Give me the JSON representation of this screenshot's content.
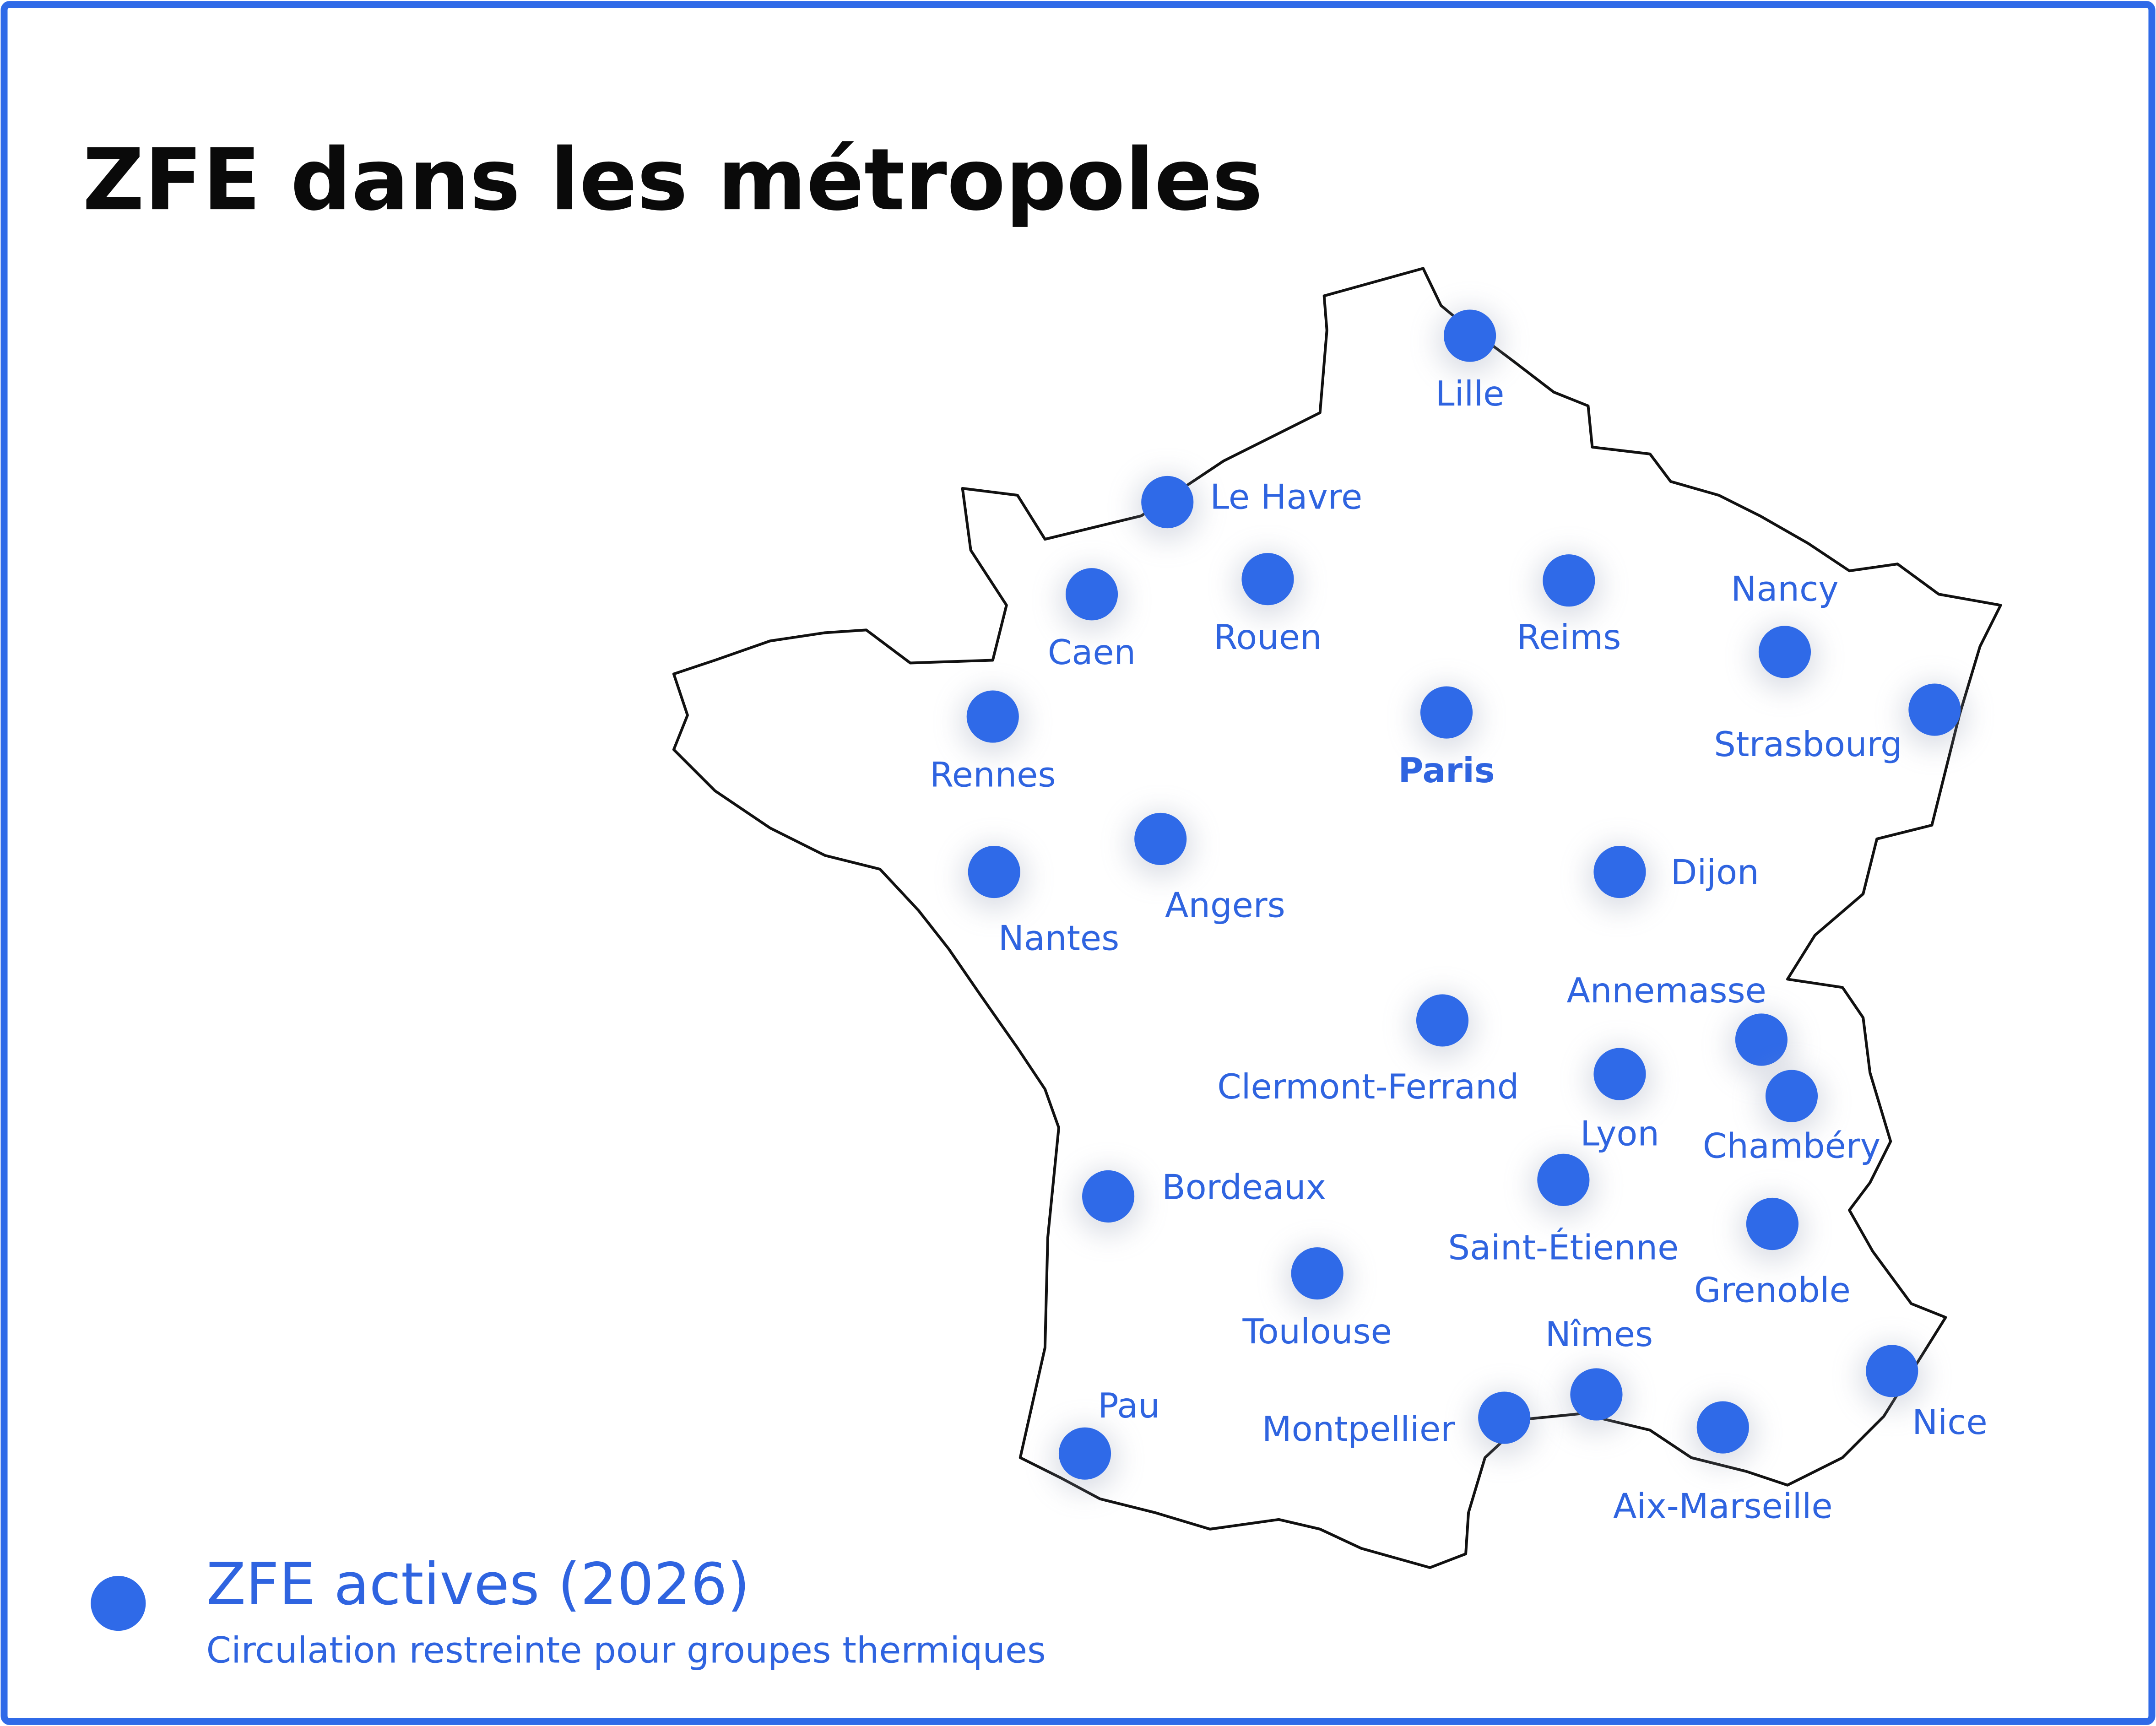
{
  "title": "ZFE dans les métropoles",
  "cities": [
    {
      "name": "Lille"
    },
    {
      "name": "Le Havre"
    },
    {
      "name": "Caen"
    },
    {
      "name": "Rouen"
    },
    {
      "name": "Reims"
    },
    {
      "name": "Nancy"
    },
    {
      "name": "Strasbourg"
    },
    {
      "name": "Rennes"
    },
    {
      "name": "Paris"
    },
    {
      "name": "Angers"
    },
    {
      "name": "Nantes"
    },
    {
      "name": "Dijon"
    },
    {
      "name": "Annemasse"
    },
    {
      "name": "Clermont-Ferrand"
    },
    {
      "name": "Lyon"
    },
    {
      "name": "Chambéry"
    },
    {
      "name": "Bordeaux"
    },
    {
      "name": "Saint-Étienne"
    },
    {
      "name": "Grenoble"
    },
    {
      "name": "Toulouse"
    },
    {
      "name": "Nîmes"
    },
    {
      "name": "Nice"
    },
    {
      "name": "Pau"
    },
    {
      "name": "Montpellier"
    },
    {
      "name": "Aix-Marseille"
    }
  ],
  "legend": {
    "label": "ZFE actives (2026)",
    "description": "Circulation restreinte pour groupes thermiques"
  }
}
